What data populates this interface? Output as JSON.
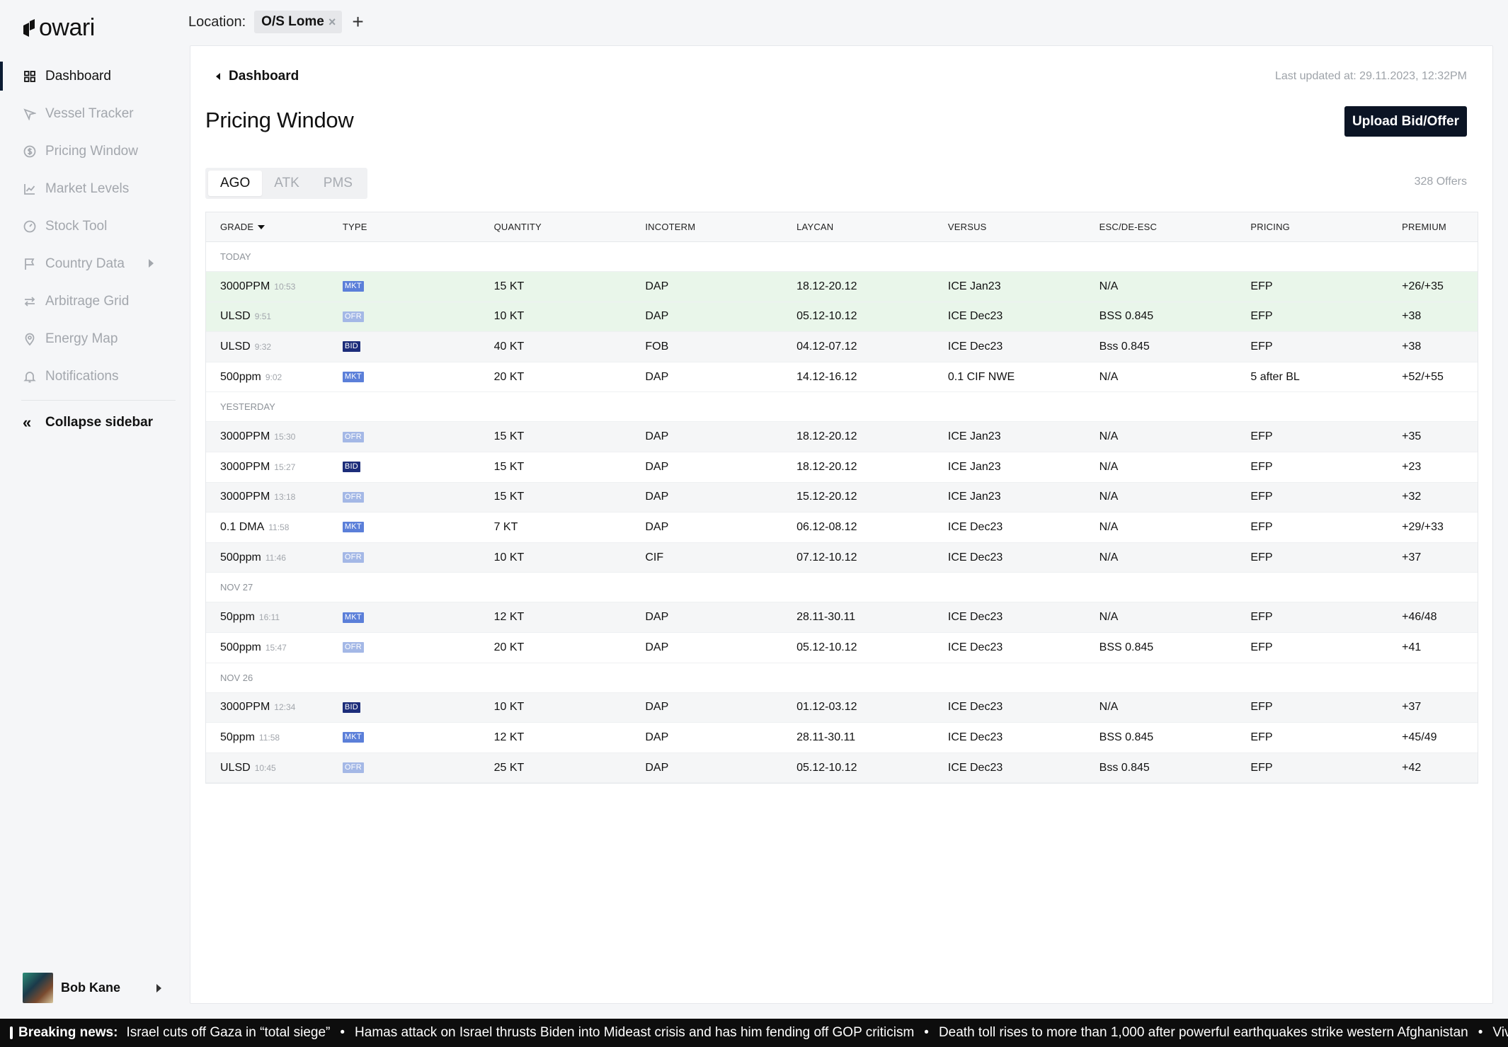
{
  "app": {
    "logo_text": "owari"
  },
  "sidebar": {
    "items": [
      {
        "label": "Dashboard",
        "icon": "grid-icon",
        "active": true
      },
      {
        "label": "Vessel Tracker",
        "icon": "navigation-arrow-icon"
      },
      {
        "label": "Pricing Window",
        "icon": "dollar-circle-icon"
      },
      {
        "label": "Market Levels",
        "icon": "line-chart-icon"
      },
      {
        "label": "Stock Tool",
        "icon": "gauge-icon"
      },
      {
        "label": "Country Data",
        "icon": "flag-icon",
        "has_submenu": true
      },
      {
        "label": "Arbitrage Grid",
        "icon": "swap-arrows-icon"
      },
      {
        "label": "Energy Map",
        "icon": "map-pin-icon"
      },
      {
        "label": "Notifications",
        "icon": "bell-icon"
      }
    ],
    "collapse_label": "Collapse sidebar",
    "user": {
      "name": "Bob Kane"
    }
  },
  "location": {
    "label": "Location:",
    "chip": "O/S Lome",
    "remove_symbol": "×",
    "add_symbol": "+"
  },
  "header": {
    "breadcrumb": "Dashboard",
    "last_updated": "Last updated at: 29.11.2023, 12:32PM",
    "title": "Pricing Window",
    "upload_button": "Upload Bid/Offer"
  },
  "tabs": [
    {
      "label": "AGO",
      "active": true
    },
    {
      "label": "ATK"
    },
    {
      "label": "PMS"
    }
  ],
  "offers_count": "328 Offers",
  "table": {
    "columns": [
      "GRADE",
      "TYPE",
      "QUANTITY",
      "INCOTERM",
      "LAYCAN",
      "VERSUS",
      "ESC/DE-ESC",
      "PRICING",
      "PREMIUM"
    ],
    "groups": [
      {
        "label": "TODAY",
        "rows": [
          {
            "grade": "3000PPM",
            "time": "10:53",
            "type": "MKT",
            "quantity": "15 KT",
            "incoterm": "DAP",
            "laycan": "18.12-20.12",
            "versus": "ICE Jan23",
            "esc": "N/A",
            "pricing": "EFP",
            "premium": "+26/+35",
            "highlight": "new"
          },
          {
            "grade": "ULSD",
            "time": "9:51",
            "type": "OFR",
            "quantity": "10 KT",
            "incoterm": "DAP",
            "laycan": "05.12-10.12",
            "versus": "ICE Dec23",
            "esc": "BSS 0.845",
            "pricing": "EFP",
            "premium": "+38",
            "highlight": "new"
          },
          {
            "grade": "ULSD",
            "time": "9:32",
            "type": "BID",
            "quantity": "40 KT",
            "incoterm": "FOB",
            "laycan": "04.12-07.12",
            "versus": "ICE Dec23",
            "esc": "Bss 0.845",
            "pricing": "EFP",
            "premium": "+38",
            "highlight": "alt"
          },
          {
            "grade": "500ppm",
            "time": "9:02",
            "type": "MKT",
            "quantity": "20 KT",
            "incoterm": "DAP",
            "laycan": "14.12-16.12",
            "versus": "0.1 CIF NWE",
            "esc": "N/A",
            "pricing": "5 after BL",
            "premium": "+52/+55",
            "highlight": ""
          }
        ]
      },
      {
        "label": "YESTERDAY",
        "rows": [
          {
            "grade": "3000PPM",
            "time": "15:30",
            "type": "OFR",
            "quantity": "15 KT",
            "incoterm": "DAP",
            "laycan": "18.12-20.12",
            "versus": "ICE Jan23",
            "esc": "N/A",
            "pricing": "EFP",
            "premium": "+35",
            "highlight": "alt"
          },
          {
            "grade": "3000PPM",
            "time": "15:27",
            "type": "BID",
            "quantity": "15 KT",
            "incoterm": "DAP",
            "laycan": "18.12-20.12",
            "versus": "ICE Jan23",
            "esc": "N/A",
            "pricing": "EFP",
            "premium": "+23",
            "highlight": ""
          },
          {
            "grade": "3000PPM",
            "time": "13:18",
            "type": "OFR",
            "quantity": "15 KT",
            "incoterm": "DAP",
            "laycan": "15.12-20.12",
            "versus": "ICE Jan23",
            "esc": "N/A",
            "pricing": "EFP",
            "premium": "+32",
            "highlight": "alt"
          },
          {
            "grade": "0.1 DMA",
            "time": "11:58",
            "type": "MKT",
            "quantity": "7 KT",
            "incoterm": "DAP",
            "laycan": "06.12-08.12",
            "versus": "ICE Dec23",
            "esc": "N/A",
            "pricing": "EFP",
            "premium": "+29/+33",
            "highlight": ""
          },
          {
            "grade": "500ppm",
            "time": "11:46",
            "type": "OFR",
            "quantity": "10 KT",
            "incoterm": "CIF",
            "laycan": "07.12-10.12",
            "versus": "ICE Dec23",
            "esc": "N/A",
            "pricing": "EFP",
            "premium": "+37",
            "highlight": "alt"
          }
        ]
      },
      {
        "label": "NOV 27",
        "rows": [
          {
            "grade": "50ppm",
            "time": "16:11",
            "type": "MKT",
            "quantity": "12 KT",
            "incoterm": "DAP",
            "laycan": "28.11-30.11",
            "versus": "ICE Dec23",
            "esc": "N/A",
            "pricing": "EFP",
            "premium": "+46/48",
            "highlight": "alt"
          },
          {
            "grade": "500ppm",
            "time": "15:47",
            "type": "OFR",
            "quantity": "20 KT",
            "incoterm": "DAP",
            "laycan": "05.12-10.12",
            "versus": "ICE Dec23",
            "esc": "BSS 0.845",
            "pricing": "EFP",
            "premium": "+41",
            "highlight": ""
          }
        ]
      },
      {
        "label": "NOV 26",
        "rows": [
          {
            "grade": "3000PPM",
            "time": "12:34",
            "type": "BID",
            "quantity": "10 KT",
            "incoterm": "DAP",
            "laycan": "01.12-03.12",
            "versus": "ICE Dec23",
            "esc": "N/A",
            "pricing": "EFP",
            "premium": "+37",
            "highlight": "alt"
          },
          {
            "grade": "50ppm",
            "time": "11:58",
            "type": "MKT",
            "quantity": "12 KT",
            "incoterm": "DAP",
            "laycan": "28.11-30.11",
            "versus": "ICE Dec23",
            "esc": "BSS 0.845",
            "pricing": "EFP",
            "premium": "+45/49",
            "highlight": ""
          },
          {
            "grade": "ULSD",
            "time": "10:45",
            "type": "OFR",
            "quantity": "25 KT",
            "incoterm": "DAP",
            "laycan": "05.12-10.12",
            "versus": "ICE Dec23",
            "esc": "Bss 0.845",
            "pricing": "EFP",
            "premium": "+42",
            "highlight": "alt"
          }
        ]
      }
    ]
  },
  "ticker": {
    "label": "Breaking news:",
    "separator": "•",
    "items": [
      "Israel cuts off Gaza in “total siege”",
      "Hamas attack on Israel thrusts Biden into Mideast crisis and has him fending off GOP criticism",
      "Death toll rises to more than 1,000 after powerful earthquakes strike western Afghanistan",
      "Vivek Ramasw"
    ]
  },
  "colors": {
    "primary_dark": "#0b1424",
    "badge_mkt": "#5b7fd9",
    "badge_ofr": "#a4b8e6",
    "badge_bid": "#1c2d7a",
    "row_new": "#e9f6ea"
  }
}
